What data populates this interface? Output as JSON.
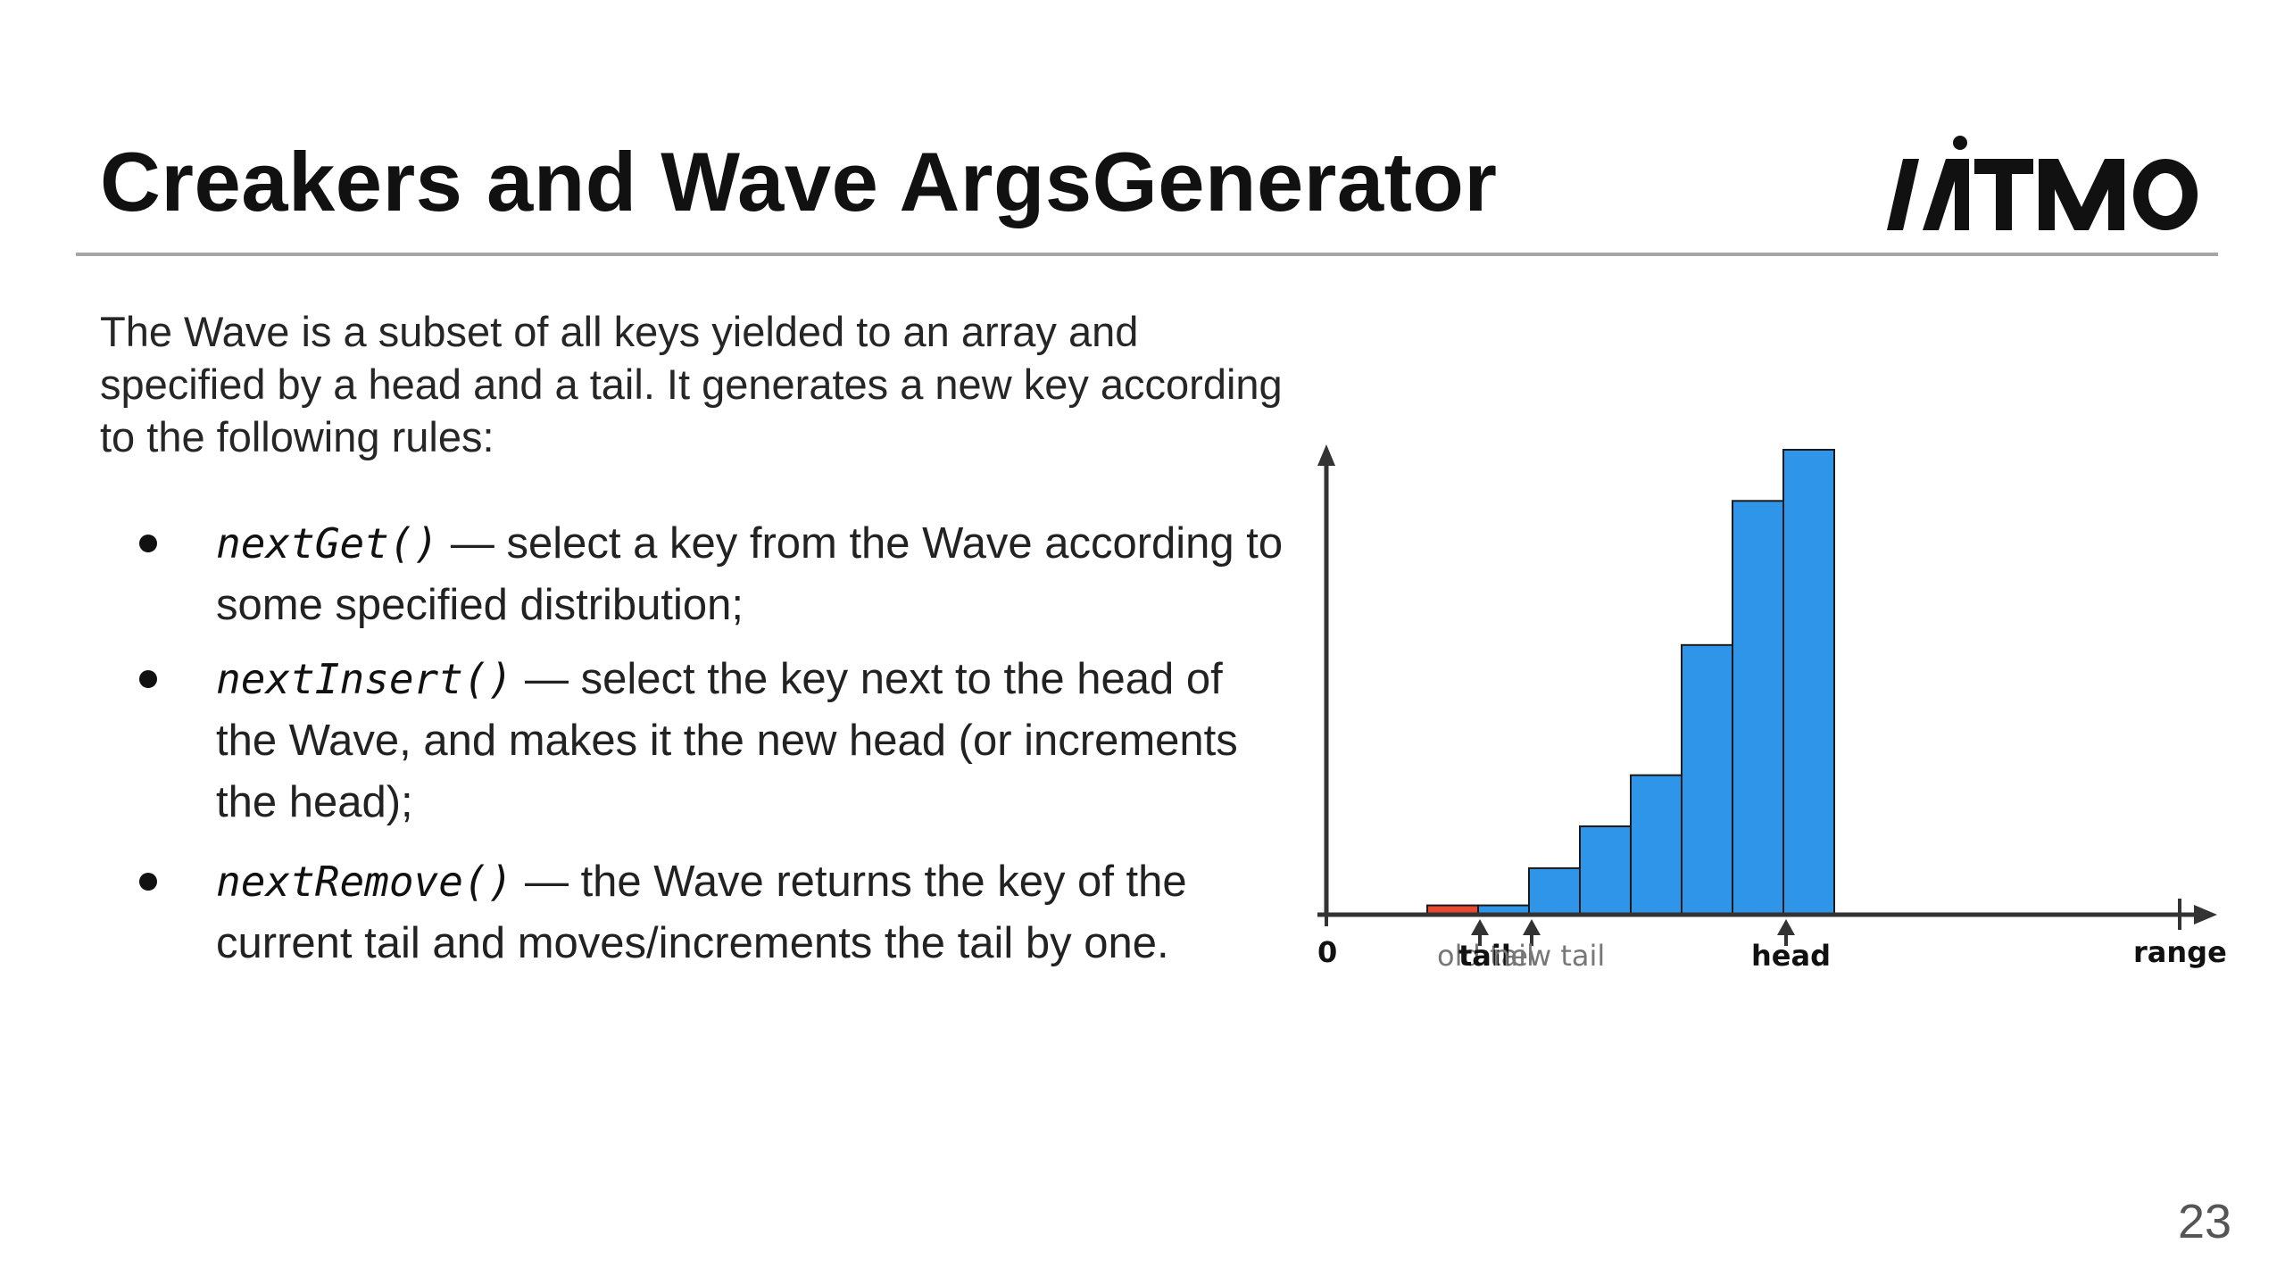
{
  "slide": {
    "title": "Creakers and Wave ArgsGenerator",
    "logo_text": "ITMO",
    "page_number": "23"
  },
  "intro_text": "The Wave is a subset of all keys yielded to an array and specified by a head and a tail. It generates a new key according to the following rules:",
  "bullets": [
    {
      "code": "nextGet()",
      "text": " — select a key from the Wave according to some specified distribution;"
    },
    {
      "code": "nextInsert()",
      "text": " — select the key next to the head of the Wave, and makes it the new head (or increments the head);"
    },
    {
      "code": "nextRemove()",
      "text": " — the Wave returns the key of the current tail and moves/increments the tail by one."
    }
  ],
  "diagram": {
    "origin_label": "0",
    "range_label": "range",
    "head_label": "head",
    "old_tail_label": "old tail",
    "tail_label": "tail",
    "new_tail_label": "new tail",
    "colors": {
      "bar_fill": "#2e95e8",
      "removed_fill": "#e8492e",
      "axis": "#333333",
      "bar_stroke": "#1a1a1a"
    },
    "removed_bar_height": 2,
    "bar_heights": [
      2,
      10,
      19,
      30,
      58,
      89,
      100
    ]
  }
}
